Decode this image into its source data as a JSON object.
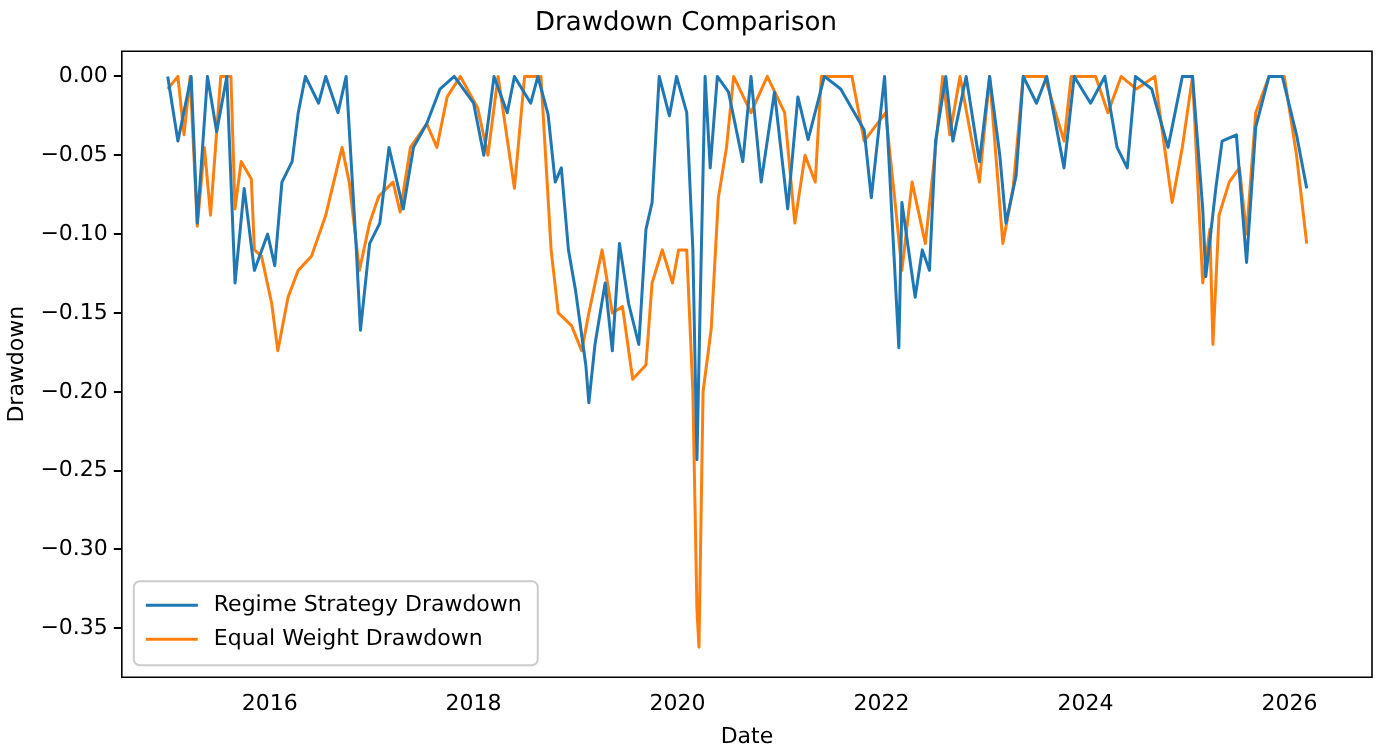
{
  "chart_data": {
    "type": "line",
    "title": "Drawdown Comparison",
    "xlabel": "Date",
    "ylabel": "Drawdown",
    "xlim": [
      2014.55,
      2026.81
    ],
    "xticks": [
      2016,
      2018,
      2020,
      2022,
      2024,
      2026
    ],
    "ylim": [
      -0.381,
      0.016
    ],
    "yticks": [
      {
        "value": 0,
        "label": "0.00"
      },
      {
        "value": -0.05,
        "label": "−0.05"
      },
      {
        "value": -0.1,
        "label": "−0.10"
      },
      {
        "value": -0.15,
        "label": "−0.15"
      },
      {
        "value": -0.2,
        "label": "−0.20"
      },
      {
        "value": -0.25,
        "label": "−0.25"
      },
      {
        "value": -0.3,
        "label": "−0.30"
      },
      {
        "value": -0.35,
        "label": "−0.35"
      }
    ],
    "grid": false,
    "legend": "bottom left",
    "marker": "none",
    "line_style": "solid",
    "series": [
      {
        "name": "Regime Strategy Drawdown",
        "color": "#1f77b4",
        "x": [
          2015.0,
          2015.1,
          2015.23,
          2015.29,
          2015.39,
          2015.48,
          2015.58,
          2015.66,
          2015.75,
          2015.85,
          2015.98,
          2016.05,
          2016.12,
          2016.22,
          2016.28,
          2016.35,
          2016.48,
          2016.55,
          2016.67,
          2016.75,
          2016.85,
          2016.89,
          2016.98,
          2017.08,
          2017.17,
          2017.31,
          2017.41,
          2017.54,
          2017.67,
          2017.81,
          2018.0,
          2018.1,
          2018.2,
          2018.33,
          2018.4,
          2018.56,
          2018.63,
          2018.73,
          2018.8,
          2018.86,
          2018.93,
          2019.0,
          2019.1,
          2019.13,
          2019.19,
          2019.29,
          2019.36,
          2019.43,
          2019.52,
          2019.62,
          2019.69,
          2019.75,
          2019.82,
          2019.92,
          2019.99,
          2020.09,
          2020.15,
          2020.19,
          2020.22,
          2020.27,
          2020.32,
          2020.39,
          2020.5,
          2020.64,
          2020.72,
          2020.82,
          2020.95,
          2021.08,
          2021.18,
          2021.28,
          2021.44,
          2021.6,
          2021.83,
          2021.9,
          2022.03,
          2022.17,
          2022.2,
          2022.33,
          2022.4,
          2022.47,
          2022.53,
          2022.63,
          2022.7,
          2022.83,
          2022.96,
          2023.06,
          2023.16,
          2023.22,
          2023.32,
          2023.39,
          2023.52,
          2023.62,
          2023.79,
          2023.89,
          2024.05,
          2024.19,
          2024.31,
          2024.41,
          2024.49,
          2024.65,
          2024.81,
          2024.95,
          2025.05,
          2025.15,
          2025.18,
          2025.28,
          2025.34,
          2025.48,
          2025.58,
          2025.67,
          2025.8,
          2025.93,
          2026.07,
          2026.17
        ],
        "values": [
          0,
          -0.041,
          0,
          -0.093,
          0,
          -0.035,
          0,
          -0.131,
          -0.071,
          -0.123,
          -0.1,
          -0.12,
          -0.067,
          -0.054,
          -0.023,
          0,
          -0.017,
          0,
          -0.023,
          0,
          -0.11,
          -0.161,
          -0.106,
          -0.093,
          -0.045,
          -0.084,
          -0.045,
          -0.03,
          -0.008,
          0,
          -0.017,
          -0.05,
          0,
          -0.023,
          0,
          -0.017,
          0,
          -0.024,
          -0.067,
          -0.058,
          -0.11,
          -0.136,
          -0.183,
          -0.207,
          -0.17,
          -0.131,
          -0.174,
          -0.106,
          -0.144,
          -0.17,
          -0.097,
          -0.08,
          0,
          -0.025,
          0,
          -0.023,
          -0.11,
          -0.243,
          -0.15,
          0,
          -0.058,
          0,
          -0.01,
          -0.054,
          0,
          -0.067,
          -0.01,
          -0.084,
          -0.013,
          -0.04,
          0,
          -0.008,
          -0.034,
          -0.077,
          0,
          -0.172,
          -0.08,
          -0.14,
          -0.11,
          -0.123,
          -0.041,
          0,
          -0.041,
          0,
          -0.054,
          0,
          -0.05,
          -0.093,
          -0.063,
          0,
          -0.017,
          0,
          -0.058,
          0,
          -0.017,
          0,
          -0.045,
          -0.058,
          0,
          -0.008,
          -0.045,
          0,
          0,
          -0.084,
          -0.127,
          -0.07,
          -0.041,
          -0.037,
          -0.118,
          -0.032,
          0,
          0,
          -0.037,
          -0.071
        ]
      },
      {
        "name": "Equal Weight Drawdown",
        "color": "#ff7f0e",
        "x": [
          2015.0,
          2015.1,
          2015.16,
          2015.22,
          2015.29,
          2015.36,
          2015.42,
          2015.52,
          2015.62,
          2015.66,
          2015.72,
          2015.82,
          2015.85,
          2015.92,
          2016.02,
          2016.08,
          2016.18,
          2016.28,
          2016.41,
          2016.55,
          2016.71,
          2016.78,
          2016.88,
          2016.98,
          2017.07,
          2017.21,
          2017.28,
          2017.38,
          2017.54,
          2017.64,
          2017.74,
          2017.87,
          2018.04,
          2018.14,
          2018.24,
          2018.4,
          2018.5,
          2018.66,
          2018.76,
          2018.83,
          2018.96,
          2019.06,
          2019.13,
          2019.26,
          2019.36,
          2019.46,
          2019.56,
          2019.69,
          2019.75,
          2019.85,
          2019.95,
          2020.01,
          2020.09,
          2020.15,
          2020.19,
          2020.21,
          2020.25,
          2020.33,
          2020.4,
          2020.48,
          2020.55,
          2020.72,
          2020.88,
          2021.05,
          2021.15,
          2021.25,
          2021.35,
          2021.41,
          2021.71,
          2021.83,
          2022.04,
          2022.14,
          2022.2,
          2022.3,
          2022.43,
          2022.53,
          2022.6,
          2022.67,
          2022.77,
          2022.96,
          2023.06,
          2023.19,
          2023.29,
          2023.39,
          2023.6,
          2023.79,
          2023.86,
          2024.1,
          2024.22,
          2024.35,
          2024.5,
          2024.68,
          2024.85,
          2024.95,
          2025.05,
          2025.15,
          2025.22,
          2025.25,
          2025.31,
          2025.41,
          2025.51,
          2025.58,
          2025.67,
          2025.8,
          2025.95,
          2026.07,
          2026.17
        ],
        "values": [
          -0.008,
          0,
          -0.037,
          0,
          -0.095,
          -0.045,
          -0.088,
          0,
          0,
          -0.084,
          -0.054,
          -0.065,
          -0.11,
          -0.114,
          -0.144,
          -0.174,
          -0.14,
          -0.123,
          -0.114,
          -0.088,
          -0.045,
          -0.067,
          -0.123,
          -0.093,
          -0.076,
          -0.067,
          -0.086,
          -0.045,
          -0.03,
          -0.045,
          -0.013,
          0,
          -0.02,
          -0.05,
          0,
          -0.071,
          0,
          0,
          -0.11,
          -0.15,
          -0.158,
          -0.174,
          -0.15,
          -0.11,
          -0.15,
          -0.146,
          -0.192,
          -0.183,
          -0.131,
          -0.11,
          -0.131,
          -0.11,
          -0.11,
          -0.2,
          -0.338,
          -0.362,
          -0.2,
          -0.16,
          -0.077,
          -0.045,
          0,
          -0.023,
          0,
          -0.023,
          -0.093,
          -0.05,
          -0.067,
          0,
          0,
          -0.041,
          -0.023,
          -0.084,
          -0.123,
          -0.067,
          -0.106,
          -0.045,
          0,
          -0.037,
          0,
          -0.067,
          0,
          -0.106,
          -0.071,
          0,
          0,
          -0.041,
          0,
          0,
          -0.023,
          0,
          -0.008,
          0,
          -0.08,
          -0.045,
          0,
          -0.131,
          -0.097,
          -0.17,
          -0.088,
          -0.067,
          -0.058,
          -0.1,
          -0.023,
          0,
          0,
          -0.05,
          -0.106
        ]
      }
    ]
  }
}
